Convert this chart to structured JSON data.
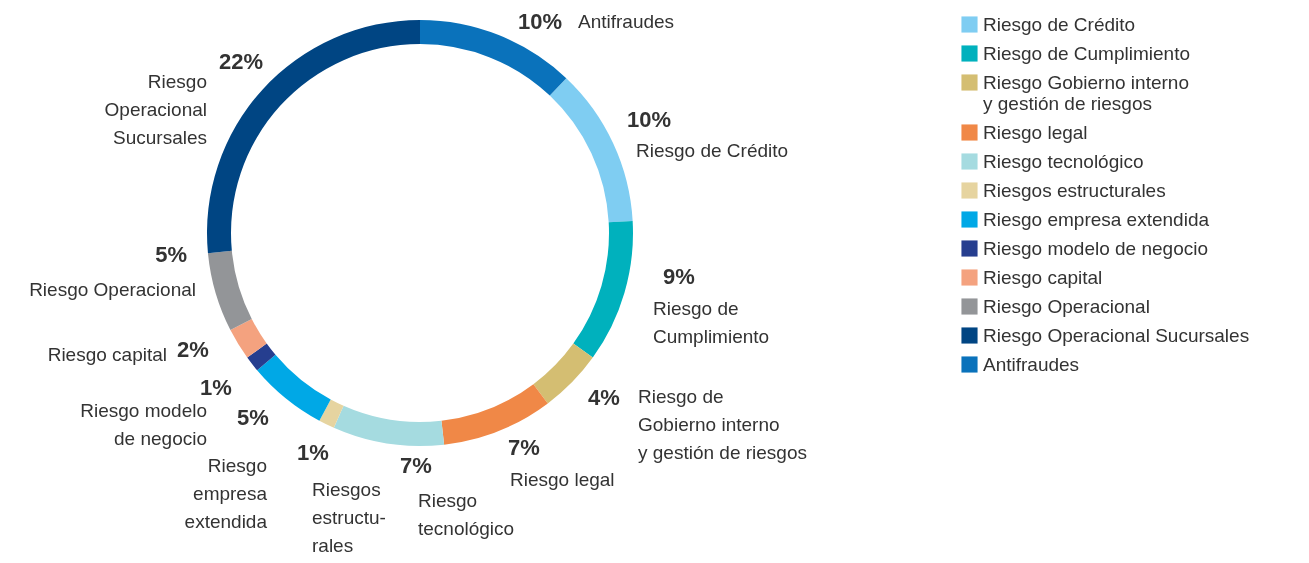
{
  "chart_data": {
    "type": "donut",
    "categories": [
      "Riesgo de Crédito",
      "Riesgo de Cumplimiento",
      "Riesgo Gobierno  interno\ny gestión de riesgos",
      "Riesgo legal",
      "Riesgo tecnológico",
      "Riesgos estructurales",
      "Riesgo empresa extendida",
      "Riesgo modelo de negocio",
      "Riesgo capital",
      "Riesgo Operacional",
      "Riesgo  Operacional Sucursales",
      "Antifraudes"
    ],
    "values": [
      10,
      9,
      4,
      7,
      7,
      1,
      5,
      1,
      2,
      5,
      22,
      10
    ],
    "value_labels": [
      "10%",
      "9%",
      "4%",
      "7%",
      "7%",
      "1%",
      "5%",
      "1%",
      "2%",
      "5%",
      "22%",
      "10%"
    ],
    "colors": [
      "#7fcdf2",
      "#00b1bd",
      "#d4be72",
      "#f08847",
      "#a5dbe0",
      "#e6d4a0",
      "#00a8e6",
      "#263e8f",
      "#f4a27f",
      "#939598",
      "#004583",
      "#0a72bb"
    ],
    "annotations": [
      "Riesgo de Crédito",
      "Riesgo de\nCumplimiento",
      "Riesgo de\nGobierno  interno\ny gestión de riesgos",
      "Riesgo legal",
      "Riesgo\ntecnológico",
      "Riesgos\nestructu-\nrales",
      "Riesgo\nempresa\nextendida",
      "Riesgo modelo\nde negocio",
      "Riesgo capital",
      "Riesgo Operacional",
      "Riesgo\nOperacional\nSucursales",
      "Antifraudes"
    ],
    "legend": "right"
  }
}
